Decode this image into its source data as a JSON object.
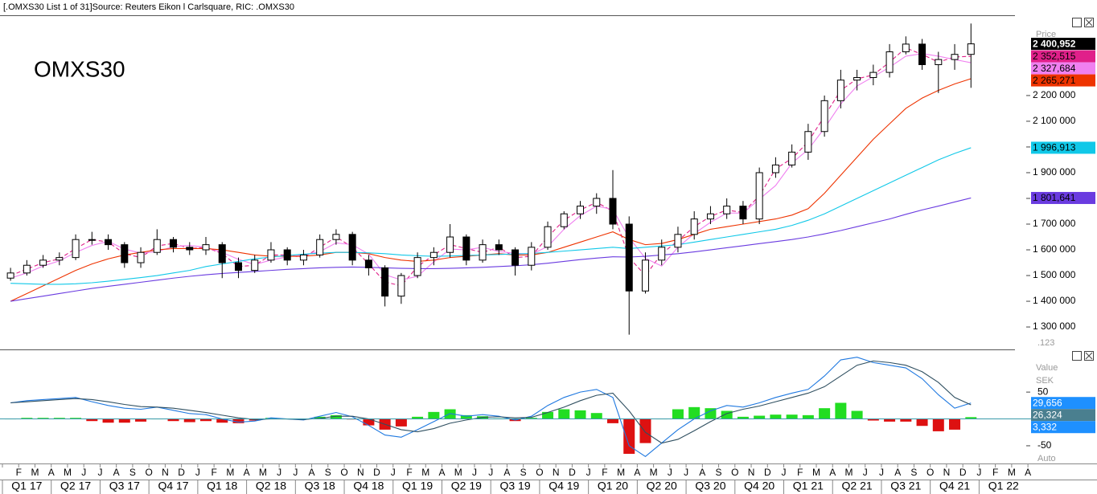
{
  "header": "[.OMXS30 List 1 of 31]Source: Reuters Eikon l Carlsquare, RIC: .OMXS30",
  "chart_data": [
    {
      "type": "candlestick",
      "title": "OMXS30",
      "y_axis_label": "Price",
      "scale_button": ".123",
      "categories": [
        null,
        "F",
        "M",
        "A",
        "M",
        "J",
        "J",
        "A",
        "S",
        "O",
        "N",
        "D",
        "J",
        "F",
        "M",
        "A",
        "M",
        "J",
        "J",
        "A",
        "S",
        "O",
        "N",
        "D",
        "J",
        "F",
        "M",
        "A",
        "M",
        "J",
        "J",
        "A",
        "S",
        "O",
        "N",
        "D",
        "J",
        "F",
        "M",
        "A",
        "M",
        "J",
        "J",
        "A",
        "S",
        "O",
        "N",
        "D",
        "J",
        "F",
        "M",
        "A",
        "M",
        "J",
        "J",
        "A",
        "S",
        "O",
        "N",
        "D",
        "J",
        "F",
        "M",
        "A"
      ],
      "quarters": [
        "Q1 17",
        "Q2 17",
        "Q3 17",
        "Q4 17",
        "Q1 18",
        "Q2 18",
        "Q3 18",
        "Q4 18",
        "Q1 19",
        "Q2 19",
        "Q3 19",
        "Q4 19",
        "Q1 20",
        "Q2 20",
        "Q3 20",
        "Q4 20",
        "Q1 21",
        "Q2 21",
        "Q3 21",
        "Q4 21",
        "Q1 22"
      ],
      "ylim": [
        1219,
        2509
      ],
      "yticks": [
        {
          "value": 1300,
          "label": "1 300 000"
        },
        {
          "value": 1400,
          "label": "1 400 000"
        },
        {
          "value": 1500,
          "label": "1 500 000"
        },
        {
          "value": 1600,
          "label": "1 600 000"
        },
        {
          "value": 1700,
          "label": "1 700 000"
        },
        {
          "value": 1800,
          "label": "1 800 000"
        },
        {
          "value": 1900,
          "label": "1 900 000"
        },
        {
          "value": 2000,
          "label": "2 000 000"
        },
        {
          "value": 2100,
          "label": "2 100 000"
        },
        {
          "value": 2200,
          "label": "2 200 000"
        }
      ],
      "candles": {
        "up_color": "#ffffff",
        "down_color": "#000000",
        "outline": "#000000",
        "label_color": "#000000",
        "close_label": "2 400,952",
        "open": [
          1490,
          1510,
          1540,
          1560,
          1570,
          1640,
          1640,
          1620,
          1550,
          1590,
          1640,
          1610,
          1600,
          1620,
          1550,
          1520,
          1560,
          1600,
          1560,
          1580,
          1640,
          1660,
          1560,
          1530,
          1420,
          1500,
          1570,
          1590,
          1650,
          1560,
          1620,
          1600,
          1540,
          1610,
          1690,
          1740,
          1770,
          1800,
          1700,
          1440,
          1560,
          1610,
          1660,
          1720,
          1740,
          1770,
          1720,
          1900,
          1930,
          1980,
          2060,
          2180,
          2260,
          2270,
          2290,
          2370,
          2400,
          2320,
          2340,
          2360,
          null,
          null,
          null,
          null
        ],
        "high": [
          1530,
          1560,
          1580,
          1590,
          1660,
          1670,
          1660,
          1630,
          1610,
          1680,
          1650,
          1630,
          1650,
          1630,
          1570,
          1580,
          1630,
          1610,
          1600,
          1660,
          1680,
          1670,
          1580,
          1540,
          1510,
          1590,
          1610,
          1700,
          1660,
          1640,
          1640,
          1610,
          1630,
          1710,
          1750,
          1790,
          1820,
          1910,
          1730,
          1590,
          1640,
          1690,
          1750,
          1770,
          1800,
          1790,
          1920,
          1960,
          2010,
          2090,
          2200,
          2300,
          2300,
          2320,
          2400,
          2430,
          2420,
          2370,
          2400,
          2480,
          null,
          null,
          null,
          null
        ],
        "low": [
          1480,
          1500,
          1530,
          1540,
          1560,
          1620,
          1600,
          1530,
          1530,
          1580,
          1590,
          1580,
          1580,
          1490,
          1490,
          1510,
          1550,
          1540,
          1540,
          1570,
          1620,
          1540,
          1500,
          1380,
          1390,
          1490,
          1540,
          1570,
          1540,
          1550,
          1580,
          1500,
          1520,
          1600,
          1680,
          1720,
          1740,
          1680,
          1270,
          1430,
          1540,
          1590,
          1640,
          1700,
          1720,
          1700,
          1700,
          1880,
          1920,
          1950,
          2040,
          2150,
          2220,
          2240,
          2270,
          2360,
          2300,
          2210,
          2300,
          2230,
          null,
          null,
          null,
          null
        ],
        "close": [
          1510,
          1540,
          1560,
          1570,
          1640,
          1640,
          1620,
          1550,
          1590,
          1640,
          1610,
          1600,
          1620,
          1550,
          1520,
          1560,
          1600,
          1560,
          1580,
          1640,
          1660,
          1560,
          1530,
          1420,
          1500,
          1570,
          1590,
          1650,
          1560,
          1620,
          1600,
          1540,
          1610,
          1690,
          1740,
          1770,
          1800,
          1700,
          1440,
          1560,
          1610,
          1660,
          1720,
          1740,
          1770,
          1720,
          1900,
          1930,
          1980,
          2060,
          2180,
          2260,
          2270,
          2290,
          2370,
          2400,
          2320,
          2340,
          2360,
          2400.952,
          null,
          null,
          null,
          null
        ]
      },
      "series": [
        {
          "color": "#e0208a",
          "dash": true,
          "label": "2 352,515",
          "label_text_color": "#000000",
          "values": [
            1500,
            1525,
            1550,
            1565,
            1605,
            1640,
            1630,
            1585,
            1570,
            1615,
            1625,
            1605,
            1610,
            1585,
            1535,
            1540,
            1580,
            1580,
            1570,
            1610,
            1650,
            1610,
            1545,
            1475,
            1460,
            1535,
            1580,
            1620,
            1605,
            1590,
            1610,
            1570,
            1575,
            1650,
            1715,
            1755,
            1785,
            1750,
            1570,
            1500,
            1585,
            1635,
            1690,
            1730,
            1755,
            1745,
            1810,
            1915,
            1955,
            2020,
            2120,
            2220,
            2265,
            2280,
            2330,
            2385,
            2360,
            2330,
            2350,
            2352.515,
            null,
            null,
            null,
            null
          ]
        },
        {
          "color": "#f080f0",
          "dash": false,
          "label": "2 327,684",
          "label_text_color": "#000000",
          "values": [
            1490,
            1510,
            1537,
            1557,
            1590,
            1617,
            1633,
            1603,
            1587,
            1593,
            1613,
            1617,
            1610,
            1590,
            1563,
            1543,
            1560,
            1573,
            1580,
            1593,
            1627,
            1620,
            1583,
            1503,
            1483,
            1497,
            1553,
            1603,
            1600,
            1610,
            1593,
            1587,
            1583,
            1613,
            1680,
            1733,
            1770,
            1757,
            1647,
            1567,
            1537,
            1610,
            1663,
            1707,
            1743,
            1743,
            1797,
            1850,
            1937,
            1990,
            2073,
            2167,
            2237,
            2273,
            2310,
            2353,
            2363,
            2353,
            2340,
            2327.684,
            null,
            null,
            null,
            null
          ]
        },
        {
          "color": "#ee3300",
          "dash": false,
          "label": "2 265,271",
          "label_text_color": "#000000",
          "values": [
            1400,
            1430,
            1460,
            1490,
            1520,
            1545,
            1565,
            1580,
            1590,
            1600,
            1605,
            1605,
            1605,
            1600,
            1590,
            1580,
            1575,
            1575,
            1575,
            1580,
            1590,
            1590,
            1585,
            1570,
            1560,
            1555,
            1560,
            1570,
            1575,
            1580,
            1585,
            1580,
            1580,
            1590,
            1610,
            1630,
            1650,
            1670,
            1640,
            1620,
            1625,
            1640,
            1660,
            1680,
            1690,
            1700,
            1710,
            1720,
            1735,
            1760,
            1820,
            1890,
            1960,
            2030,
            2090,
            2150,
            2190,
            2220,
            2245,
            2265.271,
            null,
            null,
            null,
            null
          ]
        },
        {
          "color": "#10c8e8",
          "dash": false,
          "label": "1 996,913",
          "label_text_color": "#000000",
          "values": [
            1470,
            1468,
            1466,
            1466,
            1468,
            1472,
            1478,
            1485,
            1492,
            1500,
            1510,
            1520,
            1535,
            1545,
            1555,
            1565,
            1572,
            1578,
            1583,
            1587,
            1590,
            1590,
            1588,
            1585,
            1580,
            1577,
            1575,
            1576,
            1578,
            1580,
            1582,
            1584,
            1586,
            1590,
            1595,
            1600,
            1605,
            1610,
            1605,
            1610,
            1615,
            1620,
            1630,
            1640,
            1650,
            1660,
            1670,
            1680,
            1695,
            1715,
            1740,
            1770,
            1800,
            1830,
            1860,
            1890,
            1920,
            1950,
            1975,
            1996.913,
            null,
            null,
            null,
            null
          ]
        },
        {
          "color": "#6a3be0",
          "dash": false,
          "label": "1 801,641",
          "label_text_color": "#000000",
          "values": [
            1400,
            1410,
            1420,
            1430,
            1440,
            1450,
            1458,
            1466,
            1474,
            1482,
            1490,
            1497,
            1503,
            1508,
            1512,
            1516,
            1520,
            1524,
            1527,
            1530,
            1532,
            1533,
            1532,
            1530,
            1528,
            1527,
            1527,
            1528,
            1530,
            1532,
            1535,
            1538,
            1542,
            1548,
            1555,
            1562,
            1568,
            1573,
            1572,
            1575,
            1580,
            1585,
            1592,
            1600,
            1608,
            1616,
            1624,
            1632,
            1640,
            1650,
            1662,
            1675,
            1690,
            1705,
            1720,
            1738,
            1755,
            1770,
            1786,
            1801.641,
            null,
            null,
            null,
            null
          ]
        }
      ]
    },
    {
      "type": "macd",
      "y_axis_label": "Value",
      "unit": "SEK",
      "scale_mode": "Auto",
      "ylim": [
        -80,
        128
      ],
      "yticks": [
        50,
        -50
      ],
      "zero_color": "#3a9aaa",
      "series": [
        {
          "color": "#1e78e0",
          "label": "29,656",
          "label_bg": "#1e90ff",
          "values": [
            30,
            34,
            36,
            38,
            40,
            32,
            25,
            20,
            18,
            22,
            16,
            10,
            8,
            0,
            -6,
            -4,
            2,
            0,
            -2,
            5,
            12,
            4,
            -12,
            -30,
            -34,
            -20,
            -5,
            10,
            5,
            8,
            5,
            -2,
            5,
            25,
            40,
            50,
            55,
            40,
            -50,
            -70,
            -45,
            -20,
            0,
            15,
            25,
            22,
            30,
            40,
            48,
            55,
            80,
            110,
            115,
            105,
            100,
            95,
            75,
            45,
            20,
            29.656,
            null,
            null,
            null,
            null
          ]
        },
        {
          "color": "#2f4f60",
          "label": "26,324",
          "label_bg": "#4a7f8f",
          "values": [
            30,
            32,
            34,
            36,
            38,
            36,
            32,
            27,
            23,
            22,
            20,
            16,
            12,
            7,
            2,
            -1,
            0,
            0,
            -1,
            1,
            5,
            5,
            0,
            -10,
            -20,
            -24,
            -18,
            -8,
            -2,
            3,
            4,
            2,
            3,
            12,
            22,
            34,
            44,
            48,
            15,
            -25,
            -45,
            -38,
            -22,
            -5,
            10,
            18,
            24,
            32,
            40,
            48,
            60,
            80,
            100,
            108,
            105,
            100,
            88,
            68,
            40,
            26.324,
            null,
            null,
            null,
            null
          ]
        }
      ],
      "histogram": {
        "up_color": "#22dd22",
        "down_color": "#dd1111",
        "label": "3,332",
        "label_bg": "#1e90ff",
        "values": [
          0,
          2,
          2,
          2,
          2,
          -4,
          -7,
          -7,
          -5,
          0,
          -4,
          -6,
          -4,
          -7,
          -8,
          -3,
          2,
          0,
          -1,
          4,
          7,
          -1,
          -12,
          -20,
          -14,
          4,
          13,
          18,
          7,
          5,
          1,
          -4,
          2,
          13,
          18,
          16,
          11,
          -8,
          -65,
          -45,
          0,
          18,
          22,
          20,
          15,
          4,
          6,
          8,
          8,
          7,
          20,
          30,
          15,
          -3,
          -5,
          -5,
          -13,
          -23,
          -20,
          3.332,
          null,
          null,
          null,
          null
        ]
      }
    }
  ]
}
